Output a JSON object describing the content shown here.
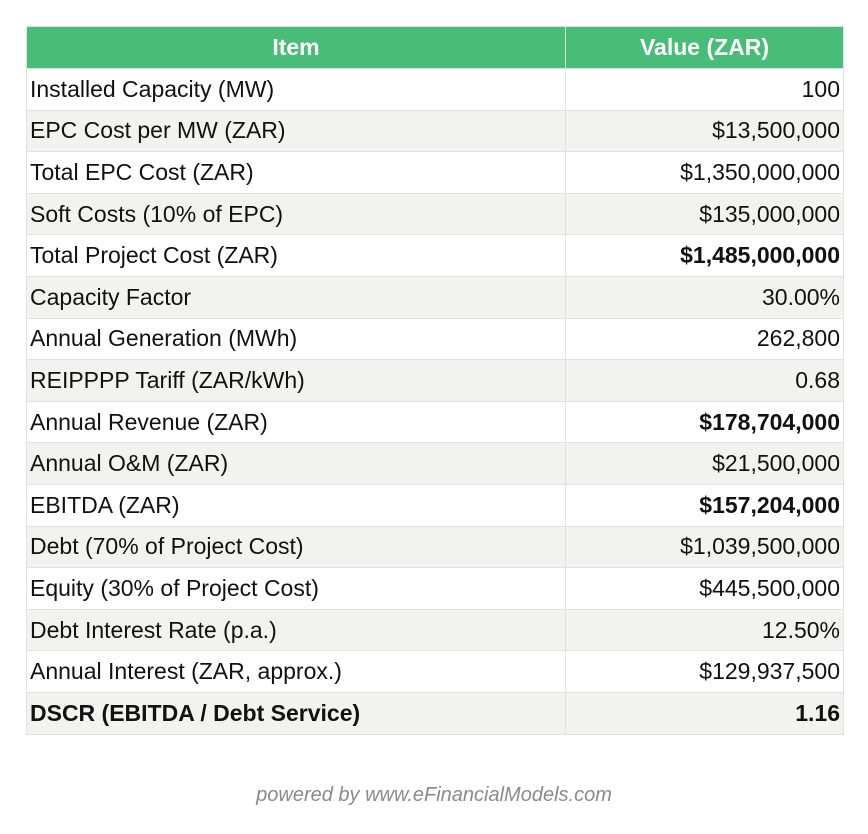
{
  "table": {
    "headers": {
      "item": "Item",
      "value": "Value (ZAR)"
    },
    "rows": [
      {
        "item": "Installed Capacity (MW)",
        "value": "100",
        "bold": "none"
      },
      {
        "item": "EPC Cost per MW (ZAR)",
        "value": "$13,500,000",
        "bold": "none"
      },
      {
        "item": "Total EPC Cost (ZAR)",
        "value": "$1,350,000,000",
        "bold": "none"
      },
      {
        "item": "Soft Costs (10% of EPC)",
        "value": "$135,000,000",
        "bold": "none"
      },
      {
        "item": "Total Project Cost (ZAR)",
        "value": "$1,485,000,000",
        "bold": "value"
      },
      {
        "item": "Capacity Factor",
        "value": "30.00%",
        "bold": "none"
      },
      {
        "item": "Annual Generation (MWh)",
        "value": "262,800",
        "bold": "none"
      },
      {
        "item": "REIPPPP Tariff (ZAR/kWh)",
        "value": "0.68",
        "bold": "none"
      },
      {
        "item": "Annual Revenue (ZAR)",
        "value": "$178,704,000",
        "bold": "value"
      },
      {
        "item": "Annual O&M (ZAR)",
        "value": "$21,500,000",
        "bold": "none"
      },
      {
        "item": "EBITDA (ZAR)",
        "value": "$157,204,000",
        "bold": "value"
      },
      {
        "item": "Debt (70% of Project Cost)",
        "value": "$1,039,500,000",
        "bold": "none"
      },
      {
        "item": "Equity (30% of Project Cost)",
        "value": "$445,500,000",
        "bold": "none"
      },
      {
        "item": "Debt Interest Rate (p.a.)",
        "value": "12.50%",
        "bold": "none"
      },
      {
        "item": "Annual Interest (ZAR, approx.)",
        "value": "$129,937,500",
        "bold": "none"
      },
      {
        "item": "DSCR (EBITDA / Debt Service)",
        "value": "1.16",
        "bold": "all"
      }
    ]
  },
  "footer": {
    "text": "powered by  www.eFinancialModels.com"
  },
  "colors": {
    "header_bg": "#47bd78",
    "row_alt_bg": "#f2f2ee",
    "footer_text": "#8a8a8a"
  }
}
